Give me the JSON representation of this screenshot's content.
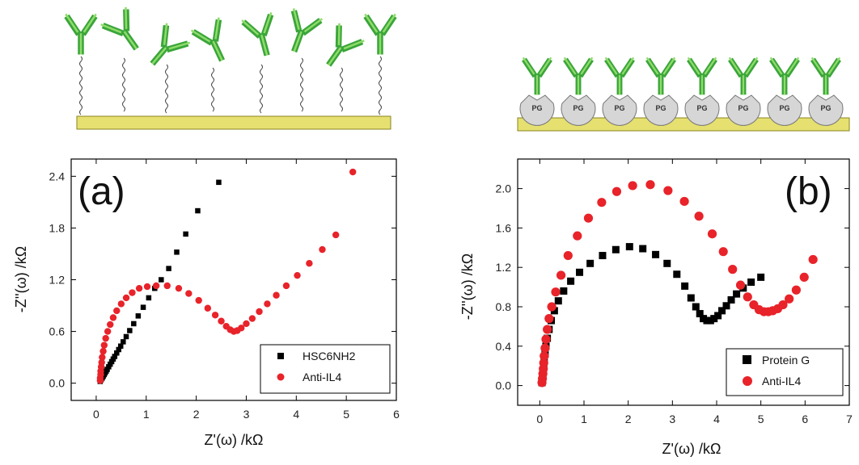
{
  "illustration": {
    "left_surface_color": "#e6e070",
    "right_surface_color": "#e6e070",
    "antibody_color": "#3aa53a",
    "antibody_light_color": "#8fdc6a",
    "pg_label": "PG",
    "pg_count": 8,
    "left_antibody_count": 9
  },
  "chart_data": [
    {
      "type": "scatter",
      "panel_label": "(a)",
      "title": "",
      "xlabel": "Z'(ω) /kΩ",
      "ylabel": "-Z''(ω) /kΩ",
      "xlim": [
        -0.5,
        6
      ],
      "ylim": [
        -0.2,
        2.6
      ],
      "xticks": [
        "0",
        "1",
        "2",
        "3",
        "4",
        "5",
        "6"
      ],
      "yticks": [
        "0.0",
        "0.6",
        "1.2",
        "1.8",
        "2.4"
      ],
      "xtick_values": [
        0,
        1,
        2,
        3,
        4,
        5,
        6
      ],
      "ytick_values": [
        0,
        0.6,
        1.2,
        1.8,
        2.4
      ],
      "grid": false,
      "legend_position": "bottom-right",
      "series": [
        {
          "name": "HSC6NH2",
          "marker": "square",
          "color": "#000000",
          "x": [
            0.08,
            0.1,
            0.12,
            0.14,
            0.16,
            0.18,
            0.2,
            0.22,
            0.25,
            0.28,
            0.31,
            0.34,
            0.37,
            0.41,
            0.45,
            0.49,
            0.54,
            0.6,
            0.67,
            0.75,
            0.84,
            0.94,
            1.05,
            1.17,
            1.3,
            1.45,
            1.61,
            1.79,
            2.03,
            2.45
          ],
          "y": [
            0.02,
            0.04,
            0.06,
            0.08,
            0.1,
            0.12,
            0.14,
            0.16,
            0.19,
            0.22,
            0.25,
            0.28,
            0.31,
            0.35,
            0.39,
            0.43,
            0.48,
            0.54,
            0.61,
            0.69,
            0.78,
            0.88,
            0.99,
            1.1,
            1.2,
            1.33,
            1.52,
            1.73,
            2.0,
            2.33
          ]
        },
        {
          "name": "Anti-IL4",
          "marker": "circle",
          "color": "#e8232a",
          "x": [
            0.08,
            0.08,
            0.09,
            0.09,
            0.1,
            0.11,
            0.12,
            0.14,
            0.16,
            0.19,
            0.23,
            0.28,
            0.34,
            0.41,
            0.5,
            0.6,
            0.72,
            0.86,
            1.02,
            1.2,
            1.42,
            1.65,
            1.85,
            2.05,
            2.23,
            2.38,
            2.5,
            2.6,
            2.68,
            2.75,
            2.82,
            2.9,
            3.0,
            3.12,
            3.26,
            3.42,
            3.6,
            3.8,
            4.02,
            4.26,
            4.52,
            4.79,
            5.13
          ],
          "y": [
            0.03,
            0.06,
            0.1,
            0.14,
            0.19,
            0.24,
            0.3,
            0.37,
            0.44,
            0.52,
            0.6,
            0.68,
            0.76,
            0.84,
            0.92,
            0.99,
            1.05,
            1.1,
            1.12,
            1.13,
            1.13,
            1.1,
            1.04,
            0.96,
            0.87,
            0.79,
            0.72,
            0.66,
            0.62,
            0.6,
            0.61,
            0.64,
            0.69,
            0.75,
            0.83,
            0.92,
            1.02,
            1.13,
            1.25,
            1.39,
            1.55,
            1.72,
            2.45
          ]
        }
      ]
    },
    {
      "type": "scatter",
      "panel_label": "(b)",
      "title": "",
      "xlabel": "Z'(ω) /kΩ",
      "ylabel": "-Z''(ω) /kΩ",
      "xlim": [
        -0.5,
        7
      ],
      "ylim": [
        -0.2,
        2.3
      ],
      "xticks": [
        "0",
        "1",
        "2",
        "3",
        "4",
        "5",
        "6",
        "7"
      ],
      "yticks": [
        "0.0",
        "0.4",
        "0.8",
        "1.2",
        "1.6",
        "2.0"
      ],
      "xtick_values": [
        0,
        1,
        2,
        3,
        4,
        5,
        6,
        7
      ],
      "ytick_values": [
        0,
        0.4,
        0.8,
        1.2,
        1.6,
        2.0
      ],
      "grid": false,
      "legend_position": "bottom-right",
      "series": [
        {
          "name": "Protein G",
          "marker": "square",
          "color": "#000000",
          "x": [
            0.05,
            0.06,
            0.07,
            0.08,
            0.09,
            0.1,
            0.12,
            0.14,
            0.17,
            0.21,
            0.26,
            0.33,
            0.42,
            0.54,
            0.7,
            0.9,
            1.14,
            1.42,
            1.72,
            2.03,
            2.33,
            2.62,
            2.88,
            3.1,
            3.28,
            3.42,
            3.53,
            3.62,
            3.7,
            3.78,
            3.86,
            3.94,
            4.03,
            4.12,
            4.22,
            4.33,
            4.45,
            4.6,
            4.78,
            5.0
          ],
          "y": [
            0.03,
            0.06,
            0.1,
            0.14,
            0.19,
            0.25,
            0.32,
            0.4,
            0.48,
            0.57,
            0.66,
            0.76,
            0.86,
            0.96,
            1.06,
            1.15,
            1.24,
            1.32,
            1.38,
            1.41,
            1.39,
            1.33,
            1.24,
            1.13,
            1.01,
            0.89,
            0.8,
            0.73,
            0.68,
            0.66,
            0.66,
            0.68,
            0.71,
            0.76,
            0.81,
            0.87,
            0.93,
            0.99,
            1.05,
            1.1
          ]
        },
        {
          "name": "Anti-IL4",
          "marker": "circle",
          "color": "#e8232a",
          "x": [
            0.05,
            0.06,
            0.07,
            0.08,
            0.09,
            0.1,
            0.12,
            0.14,
            0.17,
            0.21,
            0.27,
            0.36,
            0.48,
            0.64,
            0.85,
            1.1,
            1.4,
            1.74,
            2.1,
            2.5,
            2.9,
            3.27,
            3.6,
            3.9,
            4.15,
            4.36,
            4.54,
            4.7,
            4.84,
            4.96,
            5.07,
            5.17,
            5.27,
            5.38,
            5.5,
            5.64,
            5.8,
            5.98,
            6.18
          ],
          "y": [
            0.03,
            0.07,
            0.12,
            0.17,
            0.23,
            0.3,
            0.38,
            0.47,
            0.57,
            0.68,
            0.8,
            0.95,
            1.12,
            1.32,
            1.52,
            1.7,
            1.86,
            1.97,
            2.03,
            2.04,
            1.98,
            1.87,
            1.72,
            1.54,
            1.36,
            1.18,
            1.02,
            0.9,
            0.82,
            0.77,
            0.75,
            0.75,
            0.76,
            0.78,
            0.82,
            0.88,
            0.97,
            1.1,
            1.28
          ]
        }
      ]
    }
  ]
}
